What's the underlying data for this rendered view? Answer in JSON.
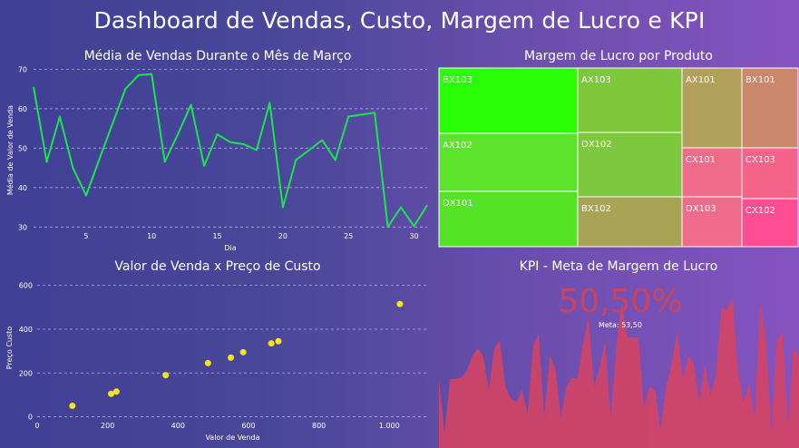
{
  "dashboard": {
    "title": "Dashboard de Vendas, Custo, Margem de Lucro e KPI"
  },
  "chart_data": [
    {
      "type": "line",
      "title": "Média de Vendas Durante o Mês de Março",
      "xlabel": "Dia",
      "ylabel": "Média de Valor de Venda",
      "xlim": [
        1,
        31
      ],
      "ylim": [
        28,
        71
      ],
      "xticks": [
        5,
        10,
        15,
        20,
        25,
        30
      ],
      "yticks": [
        30,
        40,
        50,
        60,
        70
      ],
      "grid": "horizontal dashed",
      "color": "#19e64a",
      "x": [
        1,
        2,
        3,
        4,
        5,
        6,
        7,
        8,
        9,
        10,
        11,
        12,
        13,
        14,
        15,
        16,
        17,
        18,
        19,
        20,
        21,
        22,
        23,
        24,
        25,
        26,
        27,
        28,
        29,
        30,
        31
      ],
      "y": [
        65.5,
        46.5,
        58,
        45,
        38,
        47,
        56,
        65,
        68.5,
        68.8,
        46.5,
        53.5,
        61,
        45.5,
        53.5,
        51.5,
        51,
        49.5,
        61.5,
        35,
        47,
        49.5,
        52,
        47,
        58,
        58.5,
        59,
        30,
        35,
        30.2,
        35.5
      ]
    },
    {
      "type": "treemap",
      "title": "Margem de Lucro por Produto",
      "items": [
        {
          "label": "BX103",
          "color": "#2aff05"
        },
        {
          "label": "AX102",
          "color": "#5ce42c"
        },
        {
          "label": "DX101",
          "color": "#55e325"
        },
        {
          "label": "AX103",
          "color": "#7ec63a"
        },
        {
          "label": "DX102",
          "color": "#7ec83f"
        },
        {
          "label": "BX102",
          "color": "#a9a355"
        },
        {
          "label": "AX101",
          "color": "#b1a05a"
        },
        {
          "label": "CX101",
          "color": "#f06a89"
        },
        {
          "label": "DX103",
          "color": "#ef6b8b"
        },
        {
          "label": "BX101",
          "color": "#c9886c"
        },
        {
          "label": "CX103",
          "color": "#f5628a"
        },
        {
          "label": "CX102",
          "color": "#ff4d93"
        }
      ]
    },
    {
      "type": "scatter",
      "title": "Valor de Venda x Preço de Custo",
      "xlabel": "Valor de Venda",
      "ylabel": "Preço Custo",
      "xlim": [
        0,
        1110
      ],
      "ylim": [
        -10,
        640
      ],
      "xticks": [
        0,
        200,
        400,
        600,
        800,
        1000
      ],
      "xtick_labels": [
        "0",
        "200",
        "400",
        "600",
        "800",
        "1.000"
      ],
      "yticks": [
        0,
        200,
        400,
        600
      ],
      "grid": "horizontal dashed",
      "color": "#f5e61a",
      "x": [
        100,
        210,
        225,
        365,
        485,
        550,
        585,
        665,
        685,
        1030
      ],
      "y": [
        50,
        105,
        115,
        190,
        245,
        270,
        295,
        335,
        345,
        515
      ]
    },
    {
      "type": "area",
      "title": "KPI - Meta de Margem de Lucro",
      "value": "50,50%",
      "target_label": "Meta: 53,50",
      "color": "#d9435f",
      "ylim": [
        0,
        100
      ],
      "values": [
        45,
        10,
        45,
        45,
        46,
        50,
        60,
        65,
        60,
        38,
        65,
        70,
        40,
        32,
        30,
        38,
        22,
        66,
        75,
        20,
        60,
        52,
        20,
        40,
        46,
        45,
        68,
        85,
        40,
        52,
        70,
        20,
        65,
        95,
        72,
        72,
        72,
        26,
        40,
        38,
        12,
        40,
        55,
        76,
        45,
        60,
        55,
        30,
        55,
        34,
        48,
        92,
        90,
        98,
        50,
        30,
        42,
        20,
        95,
        72,
        12,
        70,
        76,
        14,
        66,
        60
      ]
    }
  ]
}
